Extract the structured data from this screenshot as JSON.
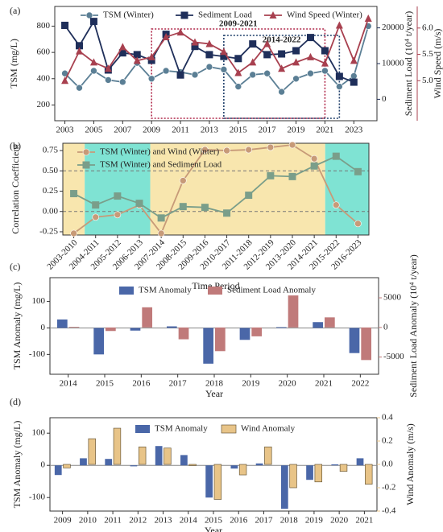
{
  "chart_data": [
    {
      "type": "line",
      "panel_label": "(a)",
      "x": [
        2003,
        2004,
        2005,
        2006,
        2007,
        2008,
        2009,
        2010,
        2011,
        2012,
        2013,
        2014,
        2015,
        2016,
        2017,
        2018,
        2019,
        2020,
        2021,
        2022,
        2023,
        2024
      ],
      "xlim": [
        2002.3,
        2024.6
      ],
      "xticks": [
        2003,
        2005,
        2007,
        2009,
        2011,
        2013,
        2015,
        2017,
        2019,
        2021,
        2023
      ],
      "ylabel": "TSM (mg/L)",
      "ylim": [
        80,
        950
      ],
      "yticks": [
        200,
        400,
        600,
        800
      ],
      "y2label": "Sediment Load (10⁴ t/year)",
      "y2lim": [
        -6000,
        26000
      ],
      "y2ticks": [
        0,
        10000,
        20000
      ],
      "y3label": "Wind Speed (m/s)",
      "y3lim": [
        4.24,
        6.41
      ],
      "y3ticks": [
        {
          "value": 5,
          "label": "5.0"
        },
        5.5,
        {
          "value": 6,
          "label": "6.0"
        }
      ],
      "series": [
        {
          "name": "TSM (Winter)",
          "color": "#5b7f95",
          "marker": "circle",
          "values": [
            440,
            330,
            460,
            390,
            375,
            520,
            400,
            460,
            450,
            430,
            490,
            470,
            340,
            430,
            440,
            300,
            400,
            440,
            460,
            340,
            420,
            800
          ]
        },
        {
          "name": "Sediment Load",
          "color": "#1f2f5a",
          "marker": "square",
          "axis": "y2",
          "values": [
            20700,
            15000,
            21800,
            8200,
            13000,
            12500,
            10900,
            18200,
            6800,
            14800,
            12500,
            12000,
            11400,
            15500,
            12500,
            12700,
            13600,
            17300,
            13600,
            6400,
            4800,
            null
          ]
        },
        {
          "name": "Wind Speed (Winter)",
          "color": "#a8404f",
          "marker": "triangle",
          "axis": "y3",
          "values": [
            5.0,
            5.56,
            5.35,
            5.23,
            5.64,
            5.38,
            5.45,
            5.83,
            5.92,
            5.73,
            5.7,
            5.55,
            5.15,
            5.35,
            5.7,
            5.23,
            5.35,
            5.45,
            5.33,
            6.05,
            5.38,
            6.18
          ]
        }
      ],
      "highlights": [
        {
          "label": "2009-2021",
          "start": 2009,
          "end": 2021,
          "color": "#b0284a"
        },
        {
          "label": "2014-2022",
          "start": 2014,
          "end": 2022,
          "color": "#1f3f6a"
        }
      ]
    },
    {
      "type": "line",
      "panel_label": "(b)",
      "categories": [
        "2003-2010",
        "2004-2011",
        "2005-2012",
        "2006-2013",
        "2007-2014",
        "2008-2015",
        "2009-2016",
        "2010-2017",
        "2011-2018",
        "2012-2019",
        "2013-2020",
        "2014-2021",
        "2015-2022",
        "2016-2023"
      ],
      "xlabel": "Time Period",
      "ylabel": "Correlation Coefficient",
      "ylim": [
        -0.29,
        0.84
      ],
      "yticks": [
        -0.25,
        {
          "value": 0,
          "label": "0.00"
        },
        0.25,
        {
          "value": 0.5,
          "label": "0.50"
        },
        0.75
      ],
      "reference_lines": [
        0,
        0.5
      ],
      "shaded_regions": [
        {
          "from": -0.5,
          "to": 0.5,
          "color": "#f8e6ae"
        },
        {
          "from": 0.5,
          "to": 3.5,
          "color": "#7fe3d3"
        },
        {
          "from": 3.5,
          "to": 11.5,
          "color": "#f8e6ae"
        },
        {
          "from": 11.5,
          "to": 13.5,
          "color": "#7fe3d3"
        }
      ],
      "series": [
        {
          "name": "TSM (Winter) and Wind (Winter)",
          "color": "#c79a78",
          "marker": "circle",
          "values": [
            -0.27,
            -0.07,
            -0.04,
            0.08,
            -0.27,
            0.38,
            0.76,
            0.75,
            0.76,
            0.79,
            0.82,
            0.65,
            0.08,
            -0.15
          ]
        },
        {
          "name": "TSM (Winter) and Sediment Load",
          "color": "#7a9e8a",
          "marker": "square",
          "values": [
            0.22,
            0.08,
            0.19,
            0.1,
            -0.08,
            0.06,
            0.05,
            -0.02,
            0.2,
            0.44,
            0.43,
            0.56,
            0.68,
            0.49
          ]
        }
      ]
    },
    {
      "type": "bar",
      "panel_label": "(c)",
      "categories": [
        "2014",
        "2015",
        "2016",
        "2017",
        "2018",
        "2019",
        "2020",
        "2021",
        "2022"
      ],
      "xlabel": "Year",
      "ylabel": "TSM Anomaly (mg/L)",
      "ylim": [
        -175,
        190
      ],
      "yticks": [
        -100,
        0,
        100
      ],
      "y2label": "Sediment Load Anomaly (10⁴ t/year)",
      "y2lim": [
        -7900,
        8400
      ],
      "y2ticks": [
        -5000,
        0,
        5000
      ],
      "series": [
        {
          "name": "TSM Anomaly",
          "color": "#4a67a8",
          "values": [
            32,
            -100,
            -10,
            6,
            -135,
            -45,
            3,
            22,
            -95
          ]
        },
        {
          "name": "Sediment Load Anomaly",
          "color": "#c07a7a",
          "axis": "y2",
          "values": [
            100,
            -600,
            3400,
            -2000,
            -4000,
            -1500,
            5400,
            1700,
            -5500
          ]
        }
      ]
    },
    {
      "type": "bar",
      "panel_label": "(d)",
      "categories": [
        "2009",
        "2010",
        "2011",
        "2012",
        "2013",
        "2014",
        "2015",
        "2016",
        "2017",
        "2018",
        "2019",
        "2020",
        "2021"
      ],
      "xlabel": "Year",
      "ylabel": "TSM Anomaly (mg/L)",
      "ylim": [
        -142,
        148
      ],
      "yticks": [
        -100,
        0,
        100
      ],
      "y2label": "Wind Anomaly (m/s)",
      "y2lim": [
        -0.4,
        0.4
      ],
      "y2ticks": [
        -0.4,
        -0.2,
        {
          "value": 0,
          "label": "0.0"
        },
        0.2,
        0.4
      ],
      "series": [
        {
          "name": "TSM Anomaly",
          "color": "#4a67a8",
          "values": [
            -30,
            22,
            20,
            -3,
            60,
            32,
            -100,
            -10,
            6,
            -135,
            -45,
            3,
            22
          ]
        },
        {
          "name": "Wind Anomaly",
          "color": "#e8c488",
          "axis": "y2",
          "values": [
            -0.03,
            0.22,
            0.31,
            0.15,
            0.14,
            -0.01,
            -0.3,
            -0.09,
            0.15,
            -0.2,
            -0.15,
            -0.06,
            -0.17
          ]
        }
      ]
    }
  ]
}
